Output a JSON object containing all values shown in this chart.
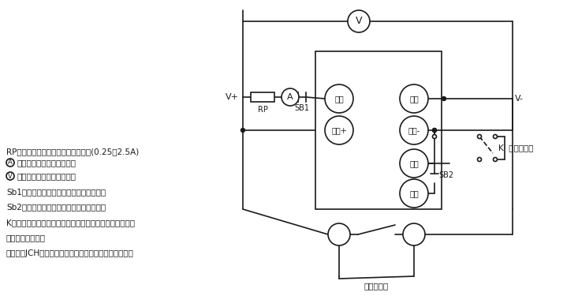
{
  "bg_color": "#ffffff",
  "line_color": "#1a1a1a",
  "text_color": "#1a1a1a",
  "fig_width": 7.33,
  "fig_height": 3.75,
  "annotations": [
    "RP为大功率滑成变阻器用来调节电流(0.25～2.5A)",
    "Ⓐ为安平表用来监视合闸电流",
    "Ⓥ为电压表用来监视额定电压",
    "Sb1为常闭按鈕，用来复位合闸保持电流。",
    "Sb2为常开按鈕，用来测试放电闭锁功能。",
    "K为刀开关或同一继电器的两付同时动作的常开触点，用来",
    "控制延时的启动。",
    "另有一付JCH常开触点接秒表停止，用来停止秒表计时。"
  ]
}
